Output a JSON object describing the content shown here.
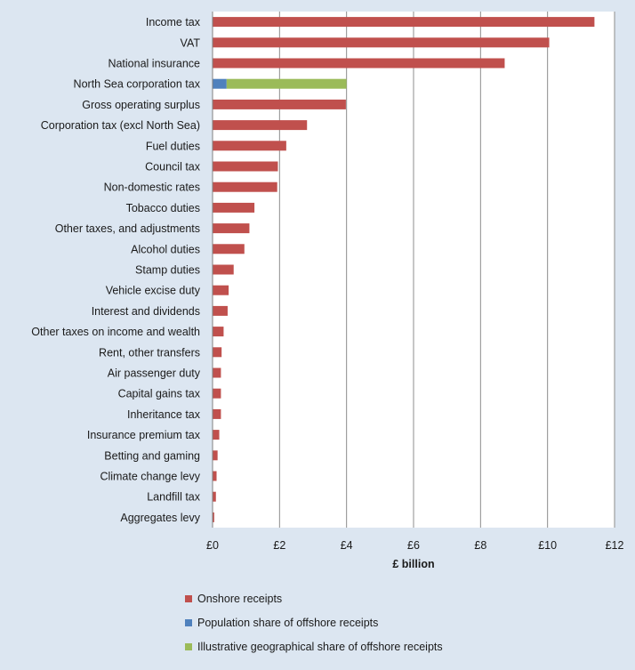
{
  "chart_data": {
    "type": "bar",
    "orientation": "horizontal",
    "stacked": true,
    "xlabel": "£ billion",
    "ylabel": "",
    "xlim": [
      0,
      12
    ],
    "xticks": [
      0,
      2,
      4,
      6,
      8,
      10,
      12
    ],
    "xtick_labels": [
      "£0",
      "£2",
      "£4",
      "£6",
      "£8",
      "£10",
      "£12"
    ],
    "grid": "vertical",
    "legend_position": "bottom",
    "categories": [
      "Income tax",
      "VAT",
      "National insurance",
      "North Sea corporation tax",
      "Gross operating surplus",
      "Corporation tax (excl North Sea)",
      "Fuel duties",
      "Council tax",
      "Non-domestic rates",
      "Tobacco duties",
      "Other taxes, and adjustments",
      "Alcohol duties",
      "Stamp duties",
      "Vehicle excise duty",
      "Interest and dividends",
      "Other taxes on income and wealth",
      "Rent, other transfers",
      "Air passenger duty",
      "Capital gains tax",
      "Inheritance tax",
      "Insurance premium tax",
      "Betting and gaming",
      "Climate change levy",
      "Landfill tax",
      "Aggregates levy"
    ],
    "series": [
      {
        "name": "Onshore receipts",
        "color": "#c0504d",
        "values": [
          11.4,
          10.05,
          8.72,
          0,
          3.98,
          2.82,
          2.2,
          1.95,
          1.93,
          1.25,
          1.1,
          0.95,
          0.63,
          0.48,
          0.45,
          0.33,
          0.27,
          0.25,
          0.25,
          0.25,
          0.2,
          0.15,
          0.12,
          0.1,
          0.05
        ]
      },
      {
        "name": "Population share of offshore receipts",
        "color": "#4f81bd",
        "values": [
          0,
          0,
          0,
          0.42,
          0,
          0,
          0,
          0,
          0,
          0,
          0,
          0,
          0,
          0,
          0,
          0,
          0,
          0,
          0,
          0,
          0,
          0,
          0,
          0,
          0
        ]
      },
      {
        "name": "Illustrative geographical share of offshore receipts",
        "color": "#9bbb59",
        "values": [
          0,
          0,
          0,
          3.58,
          0,
          0,
          0,
          0,
          0,
          0,
          0,
          0,
          0,
          0,
          0,
          0,
          0,
          0,
          0,
          0,
          0,
          0,
          0,
          0,
          0
        ]
      }
    ]
  }
}
